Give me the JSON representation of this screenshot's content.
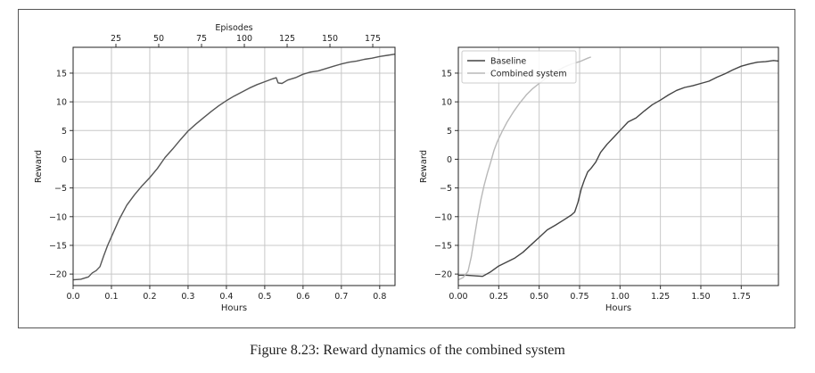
{
  "caption": "Figure 8.23: Reward dynamics of the combined system",
  "chart_data": [
    {
      "type": "line",
      "xlabel": "Hours",
      "ylabel": "Reward",
      "top_xlabel": "Episodes",
      "xlim": [
        0.0,
        0.84
      ],
      "ylim": [
        -22,
        19.5
      ],
      "top_xlim": [
        0,
        188
      ],
      "xticks": [
        "0.0",
        "0.1",
        "0.2",
        "0.3",
        "0.4",
        "0.5",
        "0.6",
        "0.7",
        "0.8"
      ],
      "yticks": [
        "−20",
        "−15",
        "−10",
        "−5",
        "0",
        "5",
        "10",
        "15"
      ],
      "top_xticks": [
        "25",
        "50",
        "75",
        "100",
        "125",
        "150",
        "175"
      ],
      "grid": true,
      "series": [
        {
          "color": "#555555",
          "x": [
            0.0,
            0.02,
            0.04,
            0.05,
            0.06,
            0.07,
            0.08,
            0.09,
            0.1,
            0.11,
            0.12,
            0.14,
            0.16,
            0.18,
            0.2,
            0.22,
            0.24,
            0.26,
            0.28,
            0.3,
            0.32,
            0.34,
            0.36,
            0.38,
            0.4,
            0.42,
            0.44,
            0.46,
            0.48,
            0.5,
            0.52,
            0.53,
            0.535,
            0.545,
            0.56,
            0.58,
            0.6,
            0.62,
            0.64,
            0.66,
            0.68,
            0.7,
            0.72,
            0.74,
            0.76,
            0.78,
            0.8,
            0.82,
            0.84
          ],
          "y": [
            -21.0,
            -20.9,
            -20.5,
            -19.8,
            -19.4,
            -18.7,
            -16.8,
            -15.0,
            -13.5,
            -12.0,
            -10.5,
            -8.0,
            -6.2,
            -4.6,
            -3.2,
            -1.6,
            0.3,
            1.8,
            3.4,
            4.9,
            6.1,
            7.2,
            8.3,
            9.3,
            10.2,
            11.0,
            11.7,
            12.4,
            13.0,
            13.5,
            14.0,
            14.2,
            13.3,
            13.2,
            13.8,
            14.2,
            14.8,
            15.2,
            15.4,
            15.8,
            16.2,
            16.6,
            16.9,
            17.1,
            17.4,
            17.6,
            17.9,
            18.1,
            18.3
          ]
        }
      ]
    },
    {
      "type": "line",
      "xlabel": "Hours",
      "ylabel": "Reward",
      "xlim": [
        0.0,
        1.98
      ],
      "ylim": [
        -22,
        19.5
      ],
      "xticks": [
        "0.00",
        "0.25",
        "0.50",
        "0.75",
        "1.00",
        "1.25",
        "1.50",
        "1.75"
      ],
      "yticks": [
        "−20",
        "−15",
        "−10",
        "−5",
        "0",
        "5",
        "10",
        "15"
      ],
      "grid": true,
      "legend": "top-left",
      "series": [
        {
          "name": "Baseline",
          "color": "#444444",
          "x": [
            0.0,
            0.05,
            0.1,
            0.15,
            0.2,
            0.25,
            0.3,
            0.35,
            0.4,
            0.45,
            0.5,
            0.55,
            0.6,
            0.65,
            0.7,
            0.72,
            0.74,
            0.76,
            0.78,
            0.8,
            0.82,
            0.85,
            0.88,
            0.92,
            0.96,
            1.0,
            1.05,
            1.1,
            1.15,
            1.2,
            1.25,
            1.3,
            1.35,
            1.4,
            1.45,
            1.5,
            1.55,
            1.6,
            1.65,
            1.7,
            1.75,
            1.8,
            1.85,
            1.9,
            1.95,
            1.98
          ],
          "y": [
            -20.2,
            -20.2,
            -20.3,
            -20.4,
            -19.6,
            -18.6,
            -17.9,
            -17.2,
            -16.2,
            -14.9,
            -13.6,
            -12.3,
            -11.5,
            -10.6,
            -9.7,
            -9.2,
            -7.5,
            -5.2,
            -3.6,
            -2.2,
            -1.6,
            -0.5,
            1.2,
            2.6,
            3.8,
            5.0,
            6.5,
            7.2,
            8.4,
            9.5,
            10.3,
            11.2,
            12.0,
            12.5,
            12.8,
            13.2,
            13.6,
            14.3,
            14.9,
            15.6,
            16.2,
            16.6,
            16.9,
            17.0,
            17.2,
            17.1
          ]
        },
        {
          "name": "Combined system",
          "color": "#b8b8b8",
          "x": [
            0.0,
            0.03,
            0.06,
            0.08,
            0.1,
            0.12,
            0.14,
            0.16,
            0.18,
            0.2,
            0.22,
            0.24,
            0.27,
            0.3,
            0.34,
            0.38,
            0.42,
            0.46,
            0.5,
            0.55,
            0.6,
            0.65,
            0.7,
            0.75,
            0.8,
            0.82
          ],
          "y": [
            -21.0,
            -20.6,
            -19.5,
            -17.0,
            -13.5,
            -10.0,
            -7.0,
            -4.5,
            -2.4,
            -0.5,
            1.5,
            3.0,
            4.8,
            6.4,
            8.2,
            9.8,
            11.2,
            12.3,
            13.2,
            14.3,
            15.2,
            16.0,
            16.6,
            17.0,
            17.6,
            17.8
          ]
        }
      ]
    }
  ]
}
